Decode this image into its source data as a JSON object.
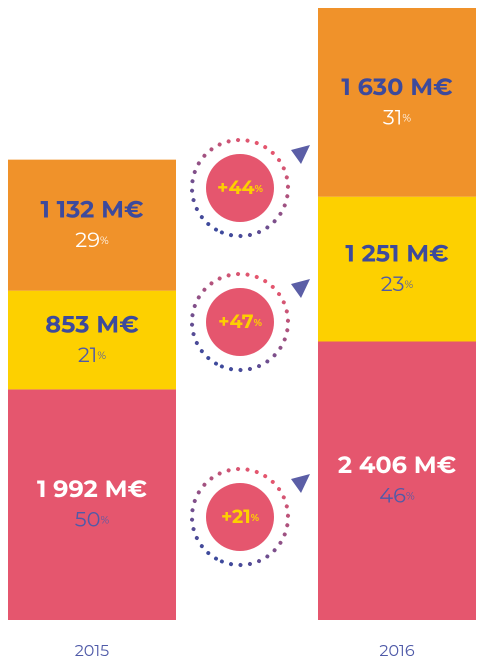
{
  "chart_data": {
    "type": "stacked_bar",
    "categories": [
      "2015",
      "2016"
    ],
    "series": [
      {
        "color": "#e5566e",
        "values": [
          1992,
          2406
        ],
        "value_labels": [
          "1 992 M€",
          "2 406 M€"
        ],
        "shares": [
          {
            "value": 50,
            "label": "50%"
          },
          {
            "value": 46,
            "label": "46%"
          }
        ],
        "growth": {
          "value": 21,
          "label": "+21%"
        }
      },
      {
        "color": "#fdd000",
        "values": [
          853,
          1251
        ],
        "value_labels": [
          "853 M€",
          "1 251 M€"
        ],
        "shares": [
          {
            "value": 21,
            "label": "21%"
          },
          {
            "value": 23,
            "label": "23%"
          }
        ],
        "growth": {
          "value": 47,
          "label": "+47%"
        }
      },
      {
        "color": "#f0922a",
        "values": [
          1132,
          1630
        ],
        "value_labels": [
          "1 132 M€",
          "1 630 M€"
        ],
        "shares": [
          {
            "value": 29,
            "label": "29%"
          },
          {
            "value": 31,
            "label": "31%"
          }
        ],
        "growth": {
          "value": 44,
          "label": "+44%"
        }
      }
    ],
    "ylim": [
      0,
      5287
    ]
  }
}
